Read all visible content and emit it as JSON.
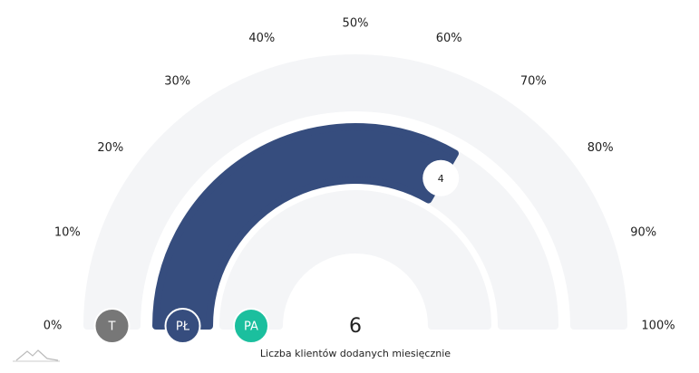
{
  "chart_data": {
    "type": "gauge",
    "ylim": [
      0,
      6
    ],
    "yticks": [
      {
        "value": 0,
        "label": "0%"
      },
      {
        "value": 0.6,
        "label": "10%"
      },
      {
        "value": 1.2,
        "label": "20%"
      },
      {
        "value": 1.8,
        "label": "30%"
      },
      {
        "value": 2.4,
        "label": "40%"
      },
      {
        "value": 3,
        "label": "50%"
      },
      {
        "value": 3.6,
        "label": "60%"
      },
      {
        "value": 4.2,
        "label": "70%"
      },
      {
        "value": 4.8,
        "label": "80%"
      },
      {
        "value": 5.4,
        "label": "90%"
      },
      {
        "value": 6,
        "label": "100%"
      }
    ],
    "series": [
      {
        "name": "T",
        "color": "#777777",
        "values": [
          0
        ]
      },
      {
        "name": "PŁ",
        "color": "#364d7e",
        "values": [
          4
        ]
      },
      {
        "name": "PA",
        "color": "#1bbf9e",
        "values": [
          0
        ]
      }
    ],
    "track_color": "#f4f5f7",
    "total": 6,
    "caption": "Liczba klientów dodanych miesięcznie"
  }
}
